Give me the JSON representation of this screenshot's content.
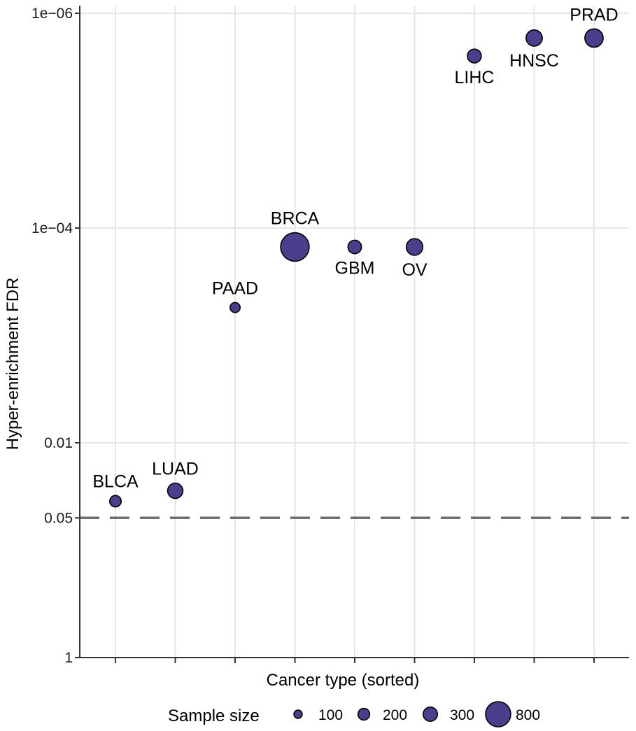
{
  "chart_data": {
    "type": "scatter",
    "xlabel": "Cancer type (sorted)",
    "ylabel": "Hyper-enrichment  FDR",
    "y_scale": "log10-reversed",
    "ylim": [
      1,
      1e-06
    ],
    "yticks": [
      {
        "value": 1e-06,
        "label": "1e−06"
      },
      {
        "value": 0.0001,
        "label": "1e−04"
      },
      {
        "value": 0.01,
        "label": "0.01"
      },
      {
        "value": 0.05,
        "label": "0.05",
        "color": "#e41a1c"
      },
      {
        "value": 1,
        "label": "1"
      }
    ],
    "threshold": {
      "value": 0.05,
      "style": "dashed",
      "color": "#6e6e6e"
    },
    "point_color": "#4a3f8c",
    "points": [
      {
        "category": "BLCA",
        "fdr": 0.035,
        "sample_size": 130,
        "label_pos": "above"
      },
      {
        "category": "LUAD",
        "fdr": 0.028,
        "sample_size": 230,
        "label_pos": "above"
      },
      {
        "category": "PAAD",
        "fdr": 0.00055,
        "sample_size": 100,
        "label_pos": "above"
      },
      {
        "category": "BRCA",
        "fdr": 0.00015,
        "sample_size": 800,
        "label_pos": "above"
      },
      {
        "category": "GBM",
        "fdr": 0.00015,
        "sample_size": 180,
        "label_pos": "below"
      },
      {
        "category": "OV",
        "fdr": 0.00015,
        "sample_size": 270,
        "label_pos": "below"
      },
      {
        "category": "LIHC",
        "fdr": 2.5e-06,
        "sample_size": 190,
        "label_pos": "below"
      },
      {
        "category": "HNSC",
        "fdr": 1.7e-06,
        "sample_size": 260,
        "label_pos": "below"
      },
      {
        "category": "PRAD",
        "fdr": 1.7e-06,
        "sample_size": 330,
        "label_pos": "above"
      }
    ],
    "legend": {
      "title": "Sample size",
      "position": "bottom",
      "entries": [
        {
          "label": "100",
          "value": 100
        },
        {
          "label": "200",
          "value": 200
        },
        {
          "label": "300",
          "value": 300
        },
        {
          "label": "800",
          "value": 800
        }
      ]
    }
  }
}
